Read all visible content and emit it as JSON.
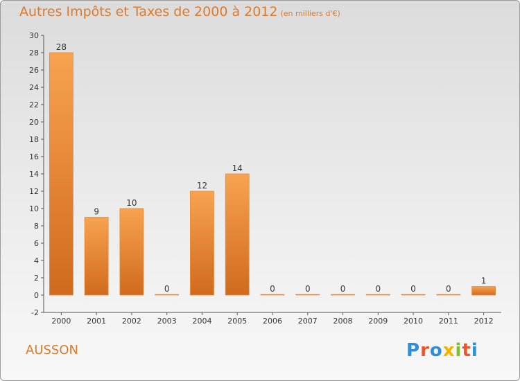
{
  "header": {
    "title": "Autres Impôts et Taxes de 2000 à 2012",
    "unit": "(en milliers d'€)"
  },
  "footer": {
    "town": "AUSSON",
    "logo_letters": [
      "P",
      "r",
      "o",
      "x",
      "i",
      "t",
      "i"
    ],
    "logo_colors": [
      "#2e8fd8",
      "#e8562a",
      "#2e8fd8",
      "#f2b400",
      "#7fbf2a",
      "#e8562a",
      "#2e8fd8"
    ]
  },
  "colors": {
    "bar_light": "#f7a350",
    "bar_dark": "#d06a1c",
    "accent": "#e07a2a"
  },
  "chart_data": {
    "type": "bar",
    "title": "Autres Impôts et Taxes de 2000 à 2012",
    "xlabel": "",
    "ylabel": "",
    "categories": [
      "2000",
      "2001",
      "2002",
      "2003",
      "2004",
      "2005",
      "2006",
      "2007",
      "2008",
      "2009",
      "2010",
      "2011",
      "2012"
    ],
    "values": [
      28,
      9,
      10,
      0,
      12,
      14,
      0,
      0,
      0,
      0,
      0,
      0,
      1
    ],
    "ylim": [
      -2,
      30
    ],
    "yticks": [
      -2,
      0,
      2,
      4,
      6,
      8,
      10,
      12,
      14,
      16,
      18,
      20,
      22,
      24,
      26,
      28,
      30
    ],
    "grid": false,
    "legend": "none"
  }
}
